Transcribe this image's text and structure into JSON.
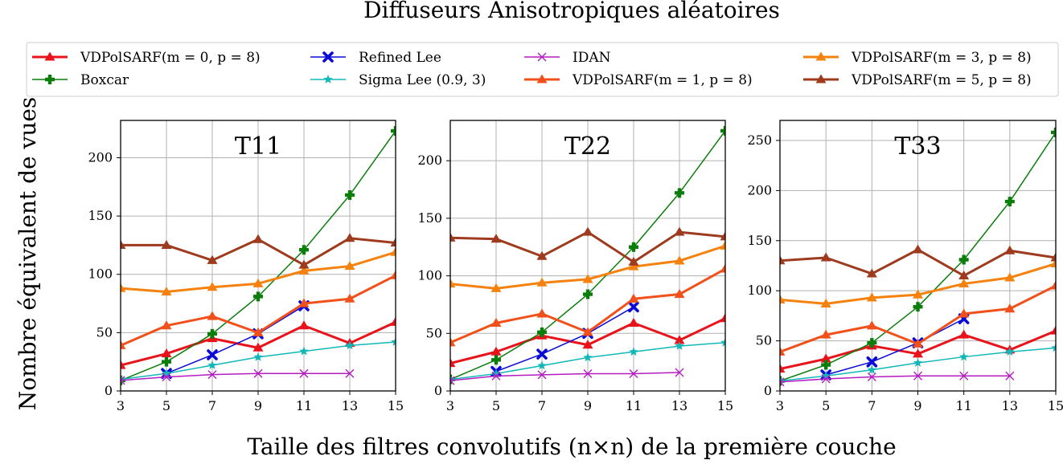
{
  "figure": {
    "title": "Diffuseurs Anisotropiques aléatoires",
    "xlabel": "Taille des filtres convolutifs (n×n) de la première couche",
    "ylabel": "Nombre équivalent de vues"
  },
  "legend": [
    {
      "label": "VDPolSARF(m = 0, p = 8)"
    },
    {
      "label": "Boxcar"
    },
    {
      "label": "Refined Lee"
    },
    {
      "label": "Sigma Lee (0.9, 3)"
    },
    {
      "label": "IDAN"
    },
    {
      "label": "VDPolSARF(m = 1, p = 8)"
    },
    {
      "label": "VDPolSARF(m = 3, p = 8)"
    },
    {
      "label": "VDPolSARF(m = 5, p = 8)"
    }
  ],
  "chart_data": [
    {
      "type": "line",
      "title": "T11",
      "x": [
        3,
        5,
        7,
        9,
        11,
        13,
        15
      ],
      "xlim": [
        3,
        15
      ],
      "ylim": [
        0,
        232
      ],
      "yticks": [
        0,
        50,
        100,
        150,
        200
      ],
      "grid": true,
      "series": [
        {
          "name": "VDPolSARF(m = 0, p = 8)",
          "color": "#e8131b",
          "marker": "triangle",
          "width": 3,
          "values": [
            22,
            32,
            45,
            37,
            56,
            41,
            59
          ]
        },
        {
          "name": "Boxcar",
          "color": "#0b7d0b",
          "marker": "plus",
          "width": 1.5,
          "values": [
            9,
            25,
            49,
            81,
            121,
            168,
            223
          ]
        },
        {
          "name": "Refined Lee",
          "color": "#0a0ad8",
          "marker": "x",
          "width": 1.5,
          "values": [
            null,
            15,
            31,
            49,
            73,
            null,
            null
          ]
        },
        {
          "name": "Sigma Lee (0.9, 3)",
          "color": "#12b8b8",
          "marker": "star",
          "width": 1.5,
          "values": [
            10,
            15,
            22,
            29,
            34,
            39,
            42
          ]
        },
        {
          "name": "IDAN",
          "color": "#b51cc1",
          "marker": "thinx",
          "width": 1.5,
          "values": [
            9,
            12,
            14,
            15,
            15,
            15,
            null
          ]
        },
        {
          "name": "VDPolSARF(m = 1, p = 8)",
          "color": "#f2501a",
          "marker": "triangle",
          "width": 3,
          "values": [
            39,
            56,
            64,
            50,
            75,
            79,
            99
          ]
        },
        {
          "name": "VDPolSARF(m = 3, p = 8)",
          "color": "#f5820e",
          "marker": "triangle",
          "width": 3,
          "values": [
            88,
            85,
            89,
            92,
            103,
            107,
            119
          ]
        },
        {
          "name": "VDPolSARF(m = 5, p = 8)",
          "color": "#9e3b1e",
          "marker": "triangle",
          "width": 3,
          "values": [
            125,
            125,
            112,
            130,
            108,
            131,
            127
          ]
        }
      ]
    },
    {
      "type": "line",
      "title": "T22",
      "x": [
        3,
        5,
        7,
        9,
        11,
        13,
        15
      ],
      "xlim": [
        3,
        15
      ],
      "ylim": [
        0,
        235
      ],
      "yticks": [
        0,
        50,
        100,
        150,
        200
      ],
      "grid": true,
      "series": [
        {
          "name": "VDPolSARF(m = 0, p = 8)",
          "color": "#e8131b",
          "marker": "triangle",
          "width": 3,
          "values": [
            24,
            34,
            48,
            40,
            59,
            44,
            63
          ]
        },
        {
          "name": "Boxcar",
          "color": "#0b7d0b",
          "marker": "plus",
          "width": 1.5,
          "values": [
            10,
            27,
            51,
            84,
            125,
            172,
            226
          ]
        },
        {
          "name": "Refined Lee",
          "color": "#0a0ad8",
          "marker": "x",
          "width": 1.5,
          "values": [
            null,
            17,
            32,
            50,
            73,
            null,
            null
          ]
        },
        {
          "name": "Sigma Lee (0.9, 3)",
          "color": "#12b8b8",
          "marker": "star",
          "width": 1.5,
          "values": [
            10,
            15,
            22,
            29,
            34,
            39,
            42
          ]
        },
        {
          "name": "IDAN",
          "color": "#b51cc1",
          "marker": "thinx",
          "width": 1.5,
          "values": [
            9,
            13,
            14,
            15,
            15,
            16,
            null
          ]
        },
        {
          "name": "VDPolSARF(m = 1, p = 8)",
          "color": "#f2501a",
          "marker": "triangle",
          "width": 3,
          "values": [
            42,
            59,
            67,
            51,
            80,
            84,
            106
          ]
        },
        {
          "name": "VDPolSARF(m = 3, p = 8)",
          "color": "#f5820e",
          "marker": "triangle",
          "width": 3,
          "values": [
            93,
            89,
            94,
            97,
            108,
            113,
            126
          ]
        },
        {
          "name": "VDPolSARF(m = 5, p = 8)",
          "color": "#9e3b1e",
          "marker": "triangle",
          "width": 3,
          "values": [
            133,
            132,
            117,
            138,
            112,
            138,
            134
          ]
        }
      ]
    },
    {
      "type": "line",
      "title": "T33",
      "x": [
        3,
        5,
        7,
        9,
        11,
        13,
        15
      ],
      "xlim": [
        3,
        15
      ],
      "ylim": [
        0,
        270
      ],
      "yticks": [
        0,
        50,
        100,
        150,
        200,
        250
      ],
      "grid": true,
      "series": [
        {
          "name": "VDPolSARF(m = 0, p = 8)",
          "color": "#e8131b",
          "marker": "triangle",
          "width": 3,
          "values": [
            22,
            32,
            45,
            37,
            56,
            41,
            60
          ]
        },
        {
          "name": "Boxcar",
          "color": "#0b7d0b",
          "marker": "plus",
          "width": 1.5,
          "values": [
            10,
            26,
            48,
            84,
            131,
            189,
            258
          ]
        },
        {
          "name": "Refined Lee",
          "color": "#0a0ad8",
          "marker": "x",
          "width": 1.5,
          "values": [
            null,
            16,
            29,
            48,
            72,
            null,
            null
          ]
        },
        {
          "name": "Sigma Lee (0.9, 3)",
          "color": "#12b8b8",
          "marker": "star",
          "width": 1.5,
          "values": [
            10,
            15,
            21,
            28,
            34,
            39,
            43
          ]
        },
        {
          "name": "IDAN",
          "color": "#b51cc1",
          "marker": "thinx",
          "width": 1.5,
          "values": [
            9,
            12,
            14,
            15,
            15,
            15,
            null
          ]
        },
        {
          "name": "VDPolSARF(m = 1, p = 8)",
          "color": "#f2501a",
          "marker": "triangle",
          "width": 3,
          "values": [
            39,
            56,
            65,
            47,
            77,
            82,
            105
          ]
        },
        {
          "name": "VDPolSARF(m = 3, p = 8)",
          "color": "#f5820e",
          "marker": "triangle",
          "width": 3,
          "values": [
            91,
            87,
            93,
            96,
            107,
            113,
            127
          ]
        },
        {
          "name": "VDPolSARF(m = 5, p = 8)",
          "color": "#9e3b1e",
          "marker": "triangle",
          "width": 3,
          "values": [
            130,
            133,
            117,
            141,
            115,
            140,
            133
          ]
        }
      ]
    }
  ]
}
